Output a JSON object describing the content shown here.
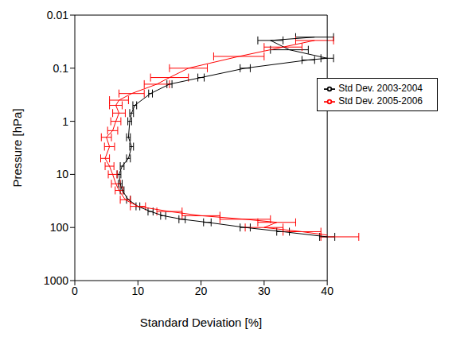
{
  "chart_data": {
    "type": "line",
    "xlabel": "Standard Deviation [%]",
    "ylabel": "Pressure [hPa]",
    "xlim": [
      0,
      40
    ],
    "xticks": [
      0,
      10,
      20,
      30,
      40
    ],
    "ylim": [
      1000,
      0.01
    ],
    "yticks": [
      0.01,
      0.1,
      1,
      10,
      100,
      1000
    ],
    "log": "y",
    "legend": "upper right",
    "marker": "none",
    "series": [
      {
        "name": "Std Dev. 2003-2004",
        "color": "#000000",
        "x": [
          38,
          31,
          34,
          40,
          37,
          27,
          20,
          15,
          12,
          9.5,
          9,
          8.7,
          8.5,
          9,
          8.5,
          7.5,
          7,
          7.2,
          7.5,
          8.5,
          10,
          12,
          14,
          17,
          21,
          27,
          33,
          40
        ],
        "y": [
          0.026,
          0.03,
          0.045,
          0.065,
          0.07,
          0.1,
          0.15,
          0.2,
          0.3,
          0.5,
          0.7,
          1,
          2,
          3,
          5,
          7,
          10,
          15,
          20,
          30,
          40,
          50,
          60,
          70,
          80,
          100,
          120,
          150
        ],
        "x_error": [
          3,
          2,
          3,
          1,
          1,
          0.8,
          0.5,
          0.4,
          0.3,
          0.3,
          0.3,
          0.3,
          0.3,
          0.3,
          0.3,
          0.3,
          0.3,
          0.3,
          0.3,
          0.3,
          0.3,
          0.4,
          0.4,
          0.5,
          0.6,
          0.8,
          1,
          1.2
        ]
      },
      {
        "name": "Std Dev. 2005-2006",
        "color": "#ff0000",
        "x": [
          38,
          33,
          26,
          18,
          15,
          13,
          9,
          7,
          6.5,
          7,
          6.5,
          6,
          5,
          5.5,
          4.8,
          5.5,
          6,
          6.5,
          7,
          8,
          10,
          15,
          20,
          27,
          32,
          30,
          36,
          42
        ],
        "y": [
          0.03,
          0.04,
          0.06,
          0.1,
          0.15,
          0.2,
          0.3,
          0.4,
          0.5,
          0.7,
          1,
          1.5,
          2,
          3,
          5,
          7,
          10,
          15,
          20,
          30,
          40,
          50,
          60,
          70,
          80,
          100,
          120,
          150
        ],
        "x_error": [
          3,
          3,
          4,
          3,
          3,
          2,
          2,
          1.5,
          1,
          1,
          0.8,
          0.8,
          0.8,
          0.8,
          0.7,
          0.7,
          0.7,
          0.7,
          0.6,
          0.8,
          1.2,
          2,
          3,
          4,
          3,
          3,
          3,
          3
        ]
      }
    ]
  }
}
